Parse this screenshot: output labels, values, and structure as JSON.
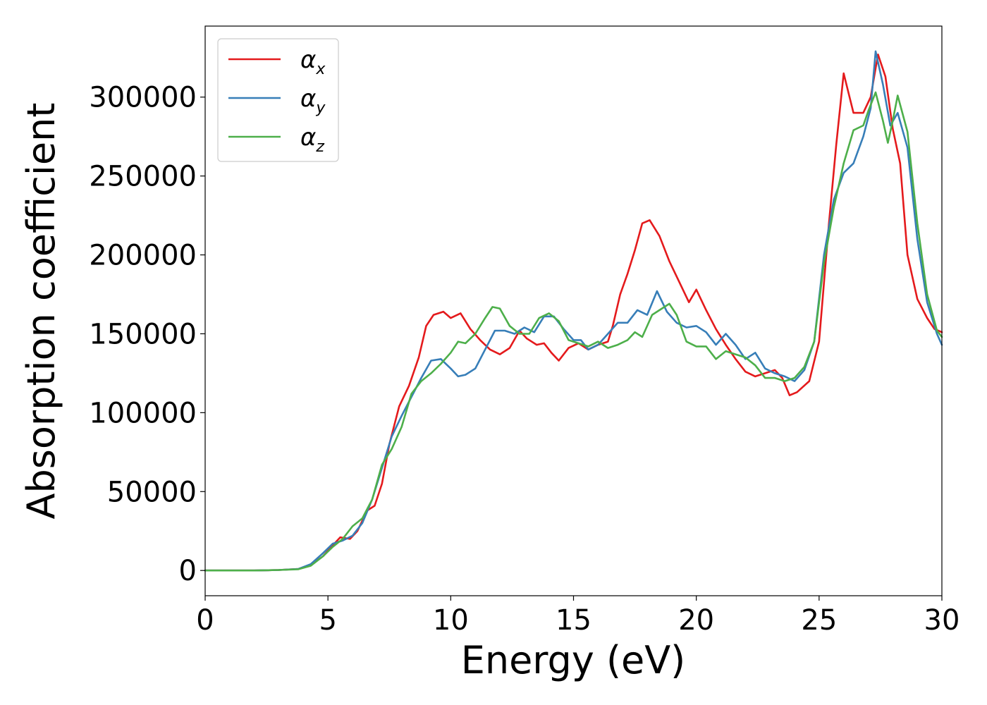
{
  "chart_data": {
    "type": "line",
    "title": "",
    "xlabel": "Energy (eV)",
    "ylabel": "Absorption coefficient",
    "xlim": [
      0,
      30
    ],
    "ylim": [
      -16000,
      345000
    ],
    "x_ticks": [
      0,
      5,
      10,
      15,
      20,
      25,
      30
    ],
    "y_ticks": [
      0,
      50000,
      100000,
      150000,
      200000,
      250000,
      300000
    ],
    "x_tick_labels": [
      "0",
      "5",
      "10",
      "15",
      "20",
      "25",
      "30"
    ],
    "y_tick_labels": [
      "0",
      "50000",
      "100000",
      "150000",
      "200000",
      "250000",
      "300000"
    ],
    "grid": false,
    "legend": {
      "position": "top-left",
      "entries": [
        {
          "symbol": "α",
          "sub": "x"
        },
        {
          "symbol": "α",
          "sub": "y"
        },
        {
          "symbol": "α",
          "sub": "z"
        }
      ]
    },
    "colors": [
      "#e41a1c",
      "#377eb8",
      "#4daf4a"
    ],
    "series": [
      {
        "name": "αx",
        "points": [
          [
            0,
            0
          ],
          [
            2,
            0
          ],
          [
            3,
            300
          ],
          [
            3.8,
            1000
          ],
          [
            4.3,
            3500
          ],
          [
            4.8,
            9000
          ],
          [
            5.2,
            16000
          ],
          [
            5.5,
            21000
          ],
          [
            5.9,
            20000
          ],
          [
            6.2,
            25000
          ],
          [
            6.6,
            38000
          ],
          [
            6.9,
            41000
          ],
          [
            7.2,
            55000
          ],
          [
            7.5,
            80000
          ],
          [
            7.9,
            104000
          ],
          [
            8.3,
            117000
          ],
          [
            8.7,
            135000
          ],
          [
            9.0,
            155000
          ],
          [
            9.3,
            162000
          ],
          [
            9.7,
            164000
          ],
          [
            10.0,
            160000
          ],
          [
            10.4,
            163000
          ],
          [
            10.8,
            153000
          ],
          [
            11.2,
            146000
          ],
          [
            11.6,
            140000
          ],
          [
            12.0,
            137000
          ],
          [
            12.4,
            141000
          ],
          [
            12.8,
            152000
          ],
          [
            13.1,
            147000
          ],
          [
            13.5,
            143000
          ],
          [
            13.8,
            144000
          ],
          [
            14.1,
            138000
          ],
          [
            14.4,
            133000
          ],
          [
            14.8,
            141000
          ],
          [
            15.2,
            144000
          ],
          [
            15.6,
            140000
          ],
          [
            16.0,
            143000
          ],
          [
            16.4,
            145000
          ],
          [
            16.6,
            155000
          ],
          [
            16.9,
            175000
          ],
          [
            17.2,
            188000
          ],
          [
            17.5,
            203000
          ],
          [
            17.8,
            220000
          ],
          [
            18.1,
            222000
          ],
          [
            18.5,
            212000
          ],
          [
            18.9,
            196000
          ],
          [
            19.3,
            183000
          ],
          [
            19.7,
            170000
          ],
          [
            20.0,
            178000
          ],
          [
            20.4,
            165000
          ],
          [
            20.8,
            153000
          ],
          [
            21.2,
            143000
          ],
          [
            21.6,
            134000
          ],
          [
            22.0,
            126000
          ],
          [
            22.4,
            123000
          ],
          [
            22.8,
            125000
          ],
          [
            23.2,
            127000
          ],
          [
            23.5,
            122000
          ],
          [
            23.8,
            111000
          ],
          [
            24.1,
            113000
          ],
          [
            24.6,
            120000
          ],
          [
            25.0,
            145000
          ],
          [
            25.4,
            220000
          ],
          [
            25.7,
            270000
          ],
          [
            26.0,
            315000
          ],
          [
            26.4,
            290000
          ],
          [
            26.8,
            290000
          ],
          [
            27.1,
            300000
          ],
          [
            27.4,
            327000
          ],
          [
            27.7,
            313000
          ],
          [
            28.0,
            280000
          ],
          [
            28.3,
            258000
          ],
          [
            28.6,
            200000
          ],
          [
            29.0,
            172000
          ],
          [
            29.4,
            160000
          ],
          [
            29.7,
            153000
          ],
          [
            30.0,
            151000
          ]
        ]
      },
      {
        "name": "αy",
        "points": [
          [
            0,
            0
          ],
          [
            2,
            0
          ],
          [
            3,
            300
          ],
          [
            3.8,
            1000
          ],
          [
            4.3,
            4000
          ],
          [
            4.8,
            11000
          ],
          [
            5.2,
            17000
          ],
          [
            5.6,
            19000
          ],
          [
            6.0,
            22000
          ],
          [
            6.4,
            30000
          ],
          [
            6.8,
            45000
          ],
          [
            7.2,
            65000
          ],
          [
            7.6,
            85000
          ],
          [
            8.0,
            98000
          ],
          [
            8.4,
            110000
          ],
          [
            8.8,
            122000
          ],
          [
            9.2,
            133000
          ],
          [
            9.6,
            134000
          ],
          [
            10.0,
            128000
          ],
          [
            10.3,
            123000
          ],
          [
            10.6,
            124000
          ],
          [
            11.0,
            128000
          ],
          [
            11.4,
            140000
          ],
          [
            11.8,
            152000
          ],
          [
            12.2,
            152000
          ],
          [
            12.6,
            150000
          ],
          [
            13.0,
            154000
          ],
          [
            13.4,
            151000
          ],
          [
            13.8,
            161000
          ],
          [
            14.2,
            161000
          ],
          [
            14.6,
            153000
          ],
          [
            15.0,
            146000
          ],
          [
            15.3,
            146000
          ],
          [
            15.6,
            140000
          ],
          [
            16.0,
            143000
          ],
          [
            16.4,
            150000
          ],
          [
            16.8,
            157000
          ],
          [
            17.2,
            157000
          ],
          [
            17.6,
            165000
          ],
          [
            18.0,
            162000
          ],
          [
            18.4,
            177000
          ],
          [
            18.8,
            164000
          ],
          [
            19.2,
            157000
          ],
          [
            19.6,
            154000
          ],
          [
            20.0,
            155000
          ],
          [
            20.4,
            151000
          ],
          [
            20.8,
            143000
          ],
          [
            21.2,
            150000
          ],
          [
            21.6,
            143000
          ],
          [
            22.0,
            134000
          ],
          [
            22.4,
            138000
          ],
          [
            22.8,
            128000
          ],
          [
            23.2,
            125000
          ],
          [
            23.6,
            123000
          ],
          [
            24.0,
            120000
          ],
          [
            24.4,
            127000
          ],
          [
            24.8,
            145000
          ],
          [
            25.2,
            200000
          ],
          [
            25.6,
            235000
          ],
          [
            26.0,
            252000
          ],
          [
            26.4,
            258000
          ],
          [
            26.8,
            275000
          ],
          [
            27.1,
            293000
          ],
          [
            27.3,
            329000
          ],
          [
            27.6,
            308000
          ],
          [
            27.9,
            282000
          ],
          [
            28.2,
            290000
          ],
          [
            28.6,
            268000
          ],
          [
            29.0,
            210000
          ],
          [
            29.4,
            170000
          ],
          [
            29.8,
            150000
          ],
          [
            30.0,
            143000
          ]
        ]
      },
      {
        "name": "αz",
        "points": [
          [
            0,
            0
          ],
          [
            2,
            0
          ],
          [
            3,
            300
          ],
          [
            3.8,
            800
          ],
          [
            4.3,
            3000
          ],
          [
            4.8,
            9000
          ],
          [
            5.2,
            15000
          ],
          [
            5.6,
            20000
          ],
          [
            6.0,
            28000
          ],
          [
            6.4,
            33000
          ],
          [
            6.8,
            45000
          ],
          [
            7.2,
            67000
          ],
          [
            7.6,
            77000
          ],
          [
            8.0,
            91000
          ],
          [
            8.4,
            112000
          ],
          [
            8.8,
            120000
          ],
          [
            9.2,
            125000
          ],
          [
            9.6,
            131000
          ],
          [
            10.0,
            138000
          ],
          [
            10.3,
            145000
          ],
          [
            10.6,
            144000
          ],
          [
            11.0,
            150000
          ],
          [
            11.4,
            160000
          ],
          [
            11.7,
            167000
          ],
          [
            12.0,
            166000
          ],
          [
            12.4,
            155000
          ],
          [
            12.8,
            150000
          ],
          [
            13.2,
            150000
          ],
          [
            13.6,
            160000
          ],
          [
            14.0,
            163000
          ],
          [
            14.4,
            158000
          ],
          [
            14.8,
            146000
          ],
          [
            15.2,
            144000
          ],
          [
            15.6,
            142000
          ],
          [
            16.0,
            145000
          ],
          [
            16.4,
            141000
          ],
          [
            16.8,
            143000
          ],
          [
            17.2,
            146000
          ],
          [
            17.5,
            151000
          ],
          [
            17.8,
            148000
          ],
          [
            18.2,
            162000
          ],
          [
            18.6,
            166000
          ],
          [
            18.9,
            169000
          ],
          [
            19.2,
            162000
          ],
          [
            19.6,
            145000
          ],
          [
            20.0,
            142000
          ],
          [
            20.4,
            142000
          ],
          [
            20.8,
            134000
          ],
          [
            21.2,
            139000
          ],
          [
            21.6,
            137000
          ],
          [
            22.0,
            135000
          ],
          [
            22.4,
            130000
          ],
          [
            22.8,
            122000
          ],
          [
            23.2,
            122000
          ],
          [
            23.6,
            120000
          ],
          [
            24.0,
            122000
          ],
          [
            24.4,
            129000
          ],
          [
            24.8,
            145000
          ],
          [
            25.2,
            195000
          ],
          [
            25.6,
            230000
          ],
          [
            26.0,
            258000
          ],
          [
            26.4,
            279000
          ],
          [
            26.8,
            282000
          ],
          [
            27.0,
            291000
          ],
          [
            27.3,
            303000
          ],
          [
            27.6,
            285000
          ],
          [
            27.8,
            271000
          ],
          [
            28.0,
            285000
          ],
          [
            28.2,
            301000
          ],
          [
            28.6,
            278000
          ],
          [
            29.0,
            220000
          ],
          [
            29.4,
            175000
          ],
          [
            29.8,
            152000
          ],
          [
            30.0,
            148000
          ]
        ]
      }
    ]
  }
}
